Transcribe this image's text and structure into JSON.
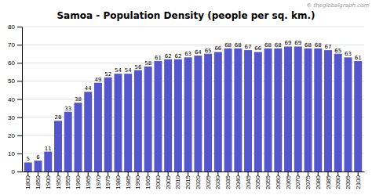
{
  "chart_data": {
    "type": "bar",
    "title": "Samoa - Population Density (people per sq. km.)",
    "annotations": [
      "© theglobalgraph.com"
    ],
    "categories": [
      "1800",
      "1850",
      "1900",
      "1950",
      "1955",
      "1960",
      "1965",
      "1970",
      "1975",
      "1980",
      "1985",
      "1990",
      "1995",
      "2000",
      "2005",
      "2010",
      "2015",
      "2020",
      "2025",
      "2030",
      "2035",
      "2040",
      "2045",
      "2050",
      "2055",
      "2060",
      "2065",
      "2070",
      "2075",
      "2080",
      "2085",
      "2090",
      "2095",
      "2100"
    ],
    "values": [
      5,
      6,
      11,
      28,
      33,
      38,
      44,
      49,
      52,
      54,
      54,
      56,
      58,
      61,
      62,
      62,
      63,
      64,
      65,
      66,
      68,
      68,
      67,
      66,
      68,
      68,
      69,
      69,
      68,
      68,
      67,
      65,
      63,
      61
    ],
    "color": "#5555cc",
    "ylim": [
      0,
      80
    ],
    "yticks": [
      0,
      10,
      20,
      30,
      40,
      50,
      60,
      70,
      80
    ],
    "grid": true,
    "data_labels": true
  }
}
